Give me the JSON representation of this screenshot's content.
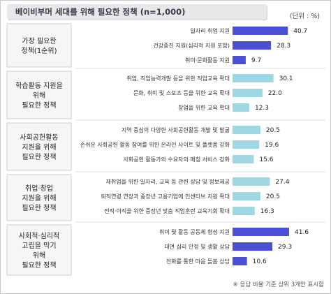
{
  "header": {
    "title": "베이비부머 세대를 위해 필요한 정책 (n=1,000)",
    "unit": "(단위 : %)"
  },
  "footer": {
    "note": "※ 응답 비율 기준 상위 3개만 표시함"
  },
  "colors": {
    "dark": "#4a4fd6",
    "light": "#9fd8e4"
  },
  "chart_data": {
    "type": "bar",
    "orientation": "horizontal",
    "xlim": [
      0,
      45
    ],
    "groups": [
      {
        "name": [
          "가장 필요한",
          "정책(1순위)"
        ],
        "color": "dark",
        "items": [
          {
            "label": "일자리 취업 지원",
            "value": 40.7
          },
          {
            "label": "건강증진 지원(심리적 지원 포함)",
            "value": 28.3
          },
          {
            "label": "취미·문화활동 지원",
            "value": 9.7
          }
        ]
      },
      {
        "name": [
          "학습활동 지원을",
          "위해",
          "필요한 정책"
        ],
        "color": "light",
        "items": [
          {
            "label": "취업, 직업능력개발 등을 위한 직업교육 확대",
            "value": 30.1
          },
          {
            "label": "문화, 취미 및 스포츠 등을 위한 교육 확대",
            "value": 22.0
          },
          {
            "label": "창업을 위한 교육 확대",
            "value": 12.3
          }
        ]
      },
      {
        "name": [
          "사회공헌활동",
          "지원을 위해",
          "필요한 정책"
        ],
        "color": "light",
        "items": [
          {
            "label": "지역 중심의 다양한 사회공헌활동 개발 및 발굴",
            "value": 20.5
          },
          {
            "label": "손쉬운 사회공헌 활동 참여를 위한 온라인 사이트 및 플랫폼 강화",
            "value": 19.6
          },
          {
            "label": "사회공헌 활동가와 수요자의 매칭 서비스 강화",
            "value": 15.6
          }
        ]
      },
      {
        "name": [
          "취업·창업",
          "지원을 위해",
          "필요한 정책"
        ],
        "color": "light",
        "items": [
          {
            "label": "재취업을 위한 일자리, 교육 등 관련 상담 및 정보제공",
            "value": 27.4
          },
          {
            "label": "퇴직연령 연장과 중장년 고용기업에 인센티브 지원 확대",
            "value": 20.5
          },
          {
            "label": "전직·이직을 위한 중장년 맞춤 직업훈련 교육기회 확대",
            "value": 16.3
          }
        ]
      },
      {
        "name": [
          "사회적·심리적",
          "고립을 막기",
          "위해",
          "필요한 정책"
        ],
        "color": "dark",
        "items": [
          {
            "label": "취미 및 활동 공동체 형성 지원",
            "value": 41.6
          },
          {
            "label": "대면 심리 안정 및 생활 상담",
            "value": 29.3
          },
          {
            "label": "전화를 통한 마음 돌봄 상담",
            "value": 10.6
          }
        ]
      }
    ]
  }
}
